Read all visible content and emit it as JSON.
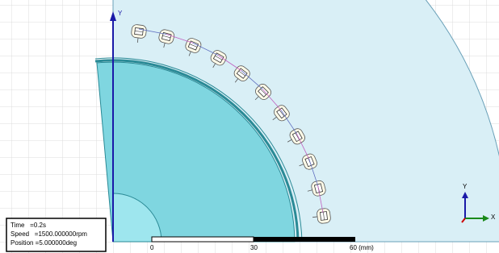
{
  "axis_label": "Y",
  "info": {
    "time": "Time   =0.2s",
    "speed": "Speed   =1500.000000rpm",
    "position": "Position =5.000000deg"
  },
  "scale_bar": {
    "labels": [
      "0",
      "30",
      "60 (mm)"
    ]
  },
  "triad": {
    "y": "Y",
    "x": "X"
  }
}
